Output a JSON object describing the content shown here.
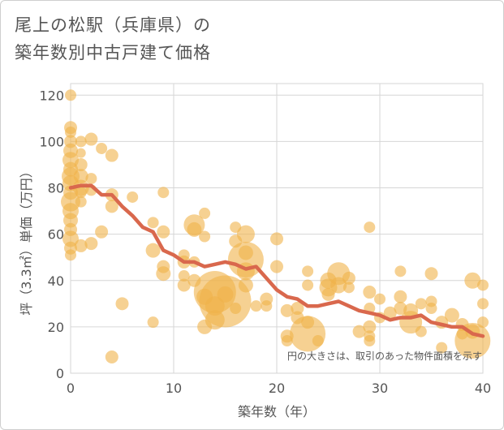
{
  "title_line1": "尾上の松駅（兵庫県）の",
  "title_line2": "築年数別中古戸建て価格",
  "chart_data": {
    "type": "scatter",
    "xlabel": "築年数（年）",
    "ylabel": "坪（3.3㎡）単価（万円）",
    "xlim": [
      0,
      40
    ],
    "ylim": [
      0,
      125
    ],
    "x_ticks": [
      "0",
      "10",
      "20",
      "30",
      "40"
    ],
    "y_ticks": [
      "0",
      "20",
      "40",
      "60",
      "80",
      "100",
      "120"
    ],
    "annotation": "円の大きさは、取引のあった物件面積を示す",
    "grid": true,
    "colors": {
      "bubble": "#f0b24a",
      "trend": "#d9684d"
    },
    "points": [
      {
        "x": 0,
        "y": 120,
        "s": 7
      },
      {
        "x": 0,
        "y": 106,
        "s": 8
      },
      {
        "x": 0,
        "y": 104,
        "s": 7
      },
      {
        "x": 0,
        "y": 100,
        "s": 8
      },
      {
        "x": 0,
        "y": 96,
        "s": 9
      },
      {
        "x": 0,
        "y": 92,
        "s": 10
      },
      {
        "x": 0,
        "y": 88,
        "s": 9
      },
      {
        "x": 0,
        "y": 85,
        "s": 11
      },
      {
        "x": 0,
        "y": 82,
        "s": 10
      },
      {
        "x": 0,
        "y": 78,
        "s": 9
      },
      {
        "x": 0,
        "y": 74,
        "s": 12
      },
      {
        "x": 0,
        "y": 70,
        "s": 10
      },
      {
        "x": 0,
        "y": 66,
        "s": 9
      },
      {
        "x": 0,
        "y": 62,
        "s": 8
      },
      {
        "x": 0,
        "y": 58,
        "s": 10
      },
      {
        "x": 0,
        "y": 54,
        "s": 8
      },
      {
        "x": 0,
        "y": 51,
        "s": 7
      },
      {
        "x": 1,
        "y": 100,
        "s": 7
      },
      {
        "x": 1,
        "y": 95,
        "s": 6
      },
      {
        "x": 1,
        "y": 90,
        "s": 8
      },
      {
        "x": 1,
        "y": 85,
        "s": 9
      },
      {
        "x": 1,
        "y": 80,
        "s": 10
      },
      {
        "x": 1,
        "y": 78,
        "s": 7
      },
      {
        "x": 1,
        "y": 74,
        "s": 7
      },
      {
        "x": 1,
        "y": 55,
        "s": 8
      },
      {
        "x": 2,
        "y": 101,
        "s": 8
      },
      {
        "x": 2,
        "y": 84,
        "s": 7
      },
      {
        "x": 2,
        "y": 79,
        "s": 7
      },
      {
        "x": 2,
        "y": 56,
        "s": 8
      },
      {
        "x": 3,
        "y": 97,
        "s": 7
      },
      {
        "x": 3,
        "y": 61,
        "s": 8
      },
      {
        "x": 4,
        "y": 94,
        "s": 8
      },
      {
        "x": 4,
        "y": 77,
        "s": 8
      },
      {
        "x": 4,
        "y": 72,
        "s": 8
      },
      {
        "x": 4,
        "y": 7,
        "s": 8
      },
      {
        "x": 5,
        "y": 30,
        "s": 8
      },
      {
        "x": 6,
        "y": 76,
        "s": 7
      },
      {
        "x": 8,
        "y": 65,
        "s": 7
      },
      {
        "x": 8,
        "y": 53,
        "s": 9
      },
      {
        "x": 8,
        "y": 22,
        "s": 7
      },
      {
        "x": 9,
        "y": 78,
        "s": 7
      },
      {
        "x": 9,
        "y": 61,
        "s": 8
      },
      {
        "x": 9,
        "y": 46,
        "s": 8
      },
      {
        "x": 9,
        "y": 43,
        "s": 9
      },
      {
        "x": 11,
        "y": 51,
        "s": 7
      },
      {
        "x": 11,
        "y": 48,
        "s": 8
      },
      {
        "x": 11,
        "y": 42,
        "s": 7
      },
      {
        "x": 11,
        "y": 38,
        "s": 8
      },
      {
        "x": 12,
        "y": 64,
        "s": 13
      },
      {
        "x": 12,
        "y": 62,
        "s": 9
      },
      {
        "x": 12,
        "y": 48,
        "s": 7
      },
      {
        "x": 12,
        "y": 40,
        "s": 8
      },
      {
        "x": 13,
        "y": 69,
        "s": 7
      },
      {
        "x": 13,
        "y": 59,
        "s": 7
      },
      {
        "x": 13,
        "y": 33,
        "s": 10
      },
      {
        "x": 13,
        "y": 20,
        "s": 9
      },
      {
        "x": 14,
        "y": 35,
        "s": 26
      },
      {
        "x": 14,
        "y": 29,
        "s": 12
      },
      {
        "x": 14,
        "y": 23,
        "s": 12
      },
      {
        "x": 15,
        "y": 31,
        "s": 32
      },
      {
        "x": 15,
        "y": 34,
        "s": 10
      },
      {
        "x": 16,
        "y": 63,
        "s": 7
      },
      {
        "x": 16,
        "y": 57,
        "s": 8
      },
      {
        "x": 16,
        "y": 28,
        "s": 7
      },
      {
        "x": 17,
        "y": 60,
        "s": 11
      },
      {
        "x": 17,
        "y": 52,
        "s": 9
      },
      {
        "x": 17,
        "y": 49,
        "s": 22
      },
      {
        "x": 17,
        "y": 44,
        "s": 11
      },
      {
        "x": 17,
        "y": 38,
        "s": 9
      },
      {
        "x": 18,
        "y": 29,
        "s": 7
      },
      {
        "x": 19,
        "y": 32,
        "s": 8
      },
      {
        "x": 19,
        "y": 29,
        "s": 7
      },
      {
        "x": 20,
        "y": 58,
        "s": 8
      },
      {
        "x": 20,
        "y": 46,
        "s": 8
      },
      {
        "x": 21,
        "y": 27,
        "s": 8
      },
      {
        "x": 21,
        "y": 16,
        "s": 8
      },
      {
        "x": 21,
        "y": 14,
        "s": 7
      },
      {
        "x": 22,
        "y": 28,
        "s": 8
      },
      {
        "x": 22,
        "y": 24,
        "s": 8
      },
      {
        "x": 23,
        "y": 44,
        "s": 7
      },
      {
        "x": 23,
        "y": 38,
        "s": 7
      },
      {
        "x": 23,
        "y": 22,
        "s": 8
      },
      {
        "x": 23,
        "y": 17,
        "s": 22
      },
      {
        "x": 24,
        "y": 14,
        "s": 7
      },
      {
        "x": 25,
        "y": 40,
        "s": 10
      },
      {
        "x": 25,
        "y": 37,
        "s": 11
      },
      {
        "x": 25,
        "y": 34,
        "s": 8
      },
      {
        "x": 26,
        "y": 43,
        "s": 14
      },
      {
        "x": 26,
        "y": 38,
        "s": 10
      },
      {
        "x": 27,
        "y": 41,
        "s": 8
      },
      {
        "x": 27,
        "y": 37,
        "s": 7
      },
      {
        "x": 28,
        "y": 18,
        "s": 8
      },
      {
        "x": 29,
        "y": 63,
        "s": 7
      },
      {
        "x": 29,
        "y": 35,
        "s": 8
      },
      {
        "x": 29,
        "y": 28,
        "s": 7
      },
      {
        "x": 29,
        "y": 20,
        "s": 8
      },
      {
        "x": 29,
        "y": 16,
        "s": 7
      },
      {
        "x": 29,
        "y": 14,
        "s": 7
      },
      {
        "x": 30,
        "y": 32,
        "s": 7
      },
      {
        "x": 30,
        "y": 24,
        "s": 7
      },
      {
        "x": 31,
        "y": 26,
        "s": 8
      },
      {
        "x": 32,
        "y": 44,
        "s": 7
      },
      {
        "x": 32,
        "y": 33,
        "s": 8
      },
      {
        "x": 32,
        "y": 28,
        "s": 8
      },
      {
        "x": 33,
        "y": 22,
        "s": 14
      },
      {
        "x": 33,
        "y": 27,
        "s": 9
      },
      {
        "x": 34,
        "y": 30,
        "s": 7
      },
      {
        "x": 34,
        "y": 18,
        "s": 7
      },
      {
        "x": 35,
        "y": 43,
        "s": 8
      },
      {
        "x": 35,
        "y": 31,
        "s": 7
      },
      {
        "x": 35,
        "y": 28,
        "s": 7
      },
      {
        "x": 36,
        "y": 22,
        "s": 8
      },
      {
        "x": 36,
        "y": 11,
        "s": 7
      },
      {
        "x": 37,
        "y": 25,
        "s": 9
      },
      {
        "x": 38,
        "y": 21,
        "s": 8
      },
      {
        "x": 38,
        "y": 17,
        "s": 7
      },
      {
        "x": 39,
        "y": 40,
        "s": 10
      },
      {
        "x": 39,
        "y": 14,
        "s": 22
      },
      {
        "x": 39,
        "y": 18,
        "s": 9
      },
      {
        "x": 40,
        "y": 38,
        "s": 7
      },
      {
        "x": 40,
        "y": 30,
        "s": 7
      },
      {
        "x": 40,
        "y": 22,
        "s": 7
      }
    ],
    "trend": [
      [
        0,
        80
      ],
      [
        1,
        81
      ],
      [
        2,
        81
      ],
      [
        3,
        77
      ],
      [
        4,
        77
      ],
      [
        5,
        72
      ],
      [
        6,
        68
      ],
      [
        7,
        63
      ],
      [
        8,
        61
      ],
      [
        9,
        53
      ],
      [
        10,
        51
      ],
      [
        11,
        48
      ],
      [
        12,
        48
      ],
      [
        13,
        46
      ],
      [
        14,
        47
      ],
      [
        15,
        48
      ],
      [
        16,
        47
      ],
      [
        17,
        45
      ],
      [
        18,
        46
      ],
      [
        19,
        41
      ],
      [
        20,
        36
      ],
      [
        21,
        33
      ],
      [
        22,
        32
      ],
      [
        23,
        29
      ],
      [
        24,
        29
      ],
      [
        25,
        30
      ],
      [
        26,
        31
      ],
      [
        27,
        29
      ],
      [
        28,
        27
      ],
      [
        29,
        26
      ],
      [
        30,
        25
      ],
      [
        31,
        23
      ],
      [
        32,
        24
      ],
      [
        33,
        24
      ],
      [
        34,
        25
      ],
      [
        35,
        22
      ],
      [
        36,
        21
      ],
      [
        37,
        20
      ],
      [
        38,
        20
      ],
      [
        39,
        17
      ],
      [
        40,
        16
      ]
    ]
  }
}
